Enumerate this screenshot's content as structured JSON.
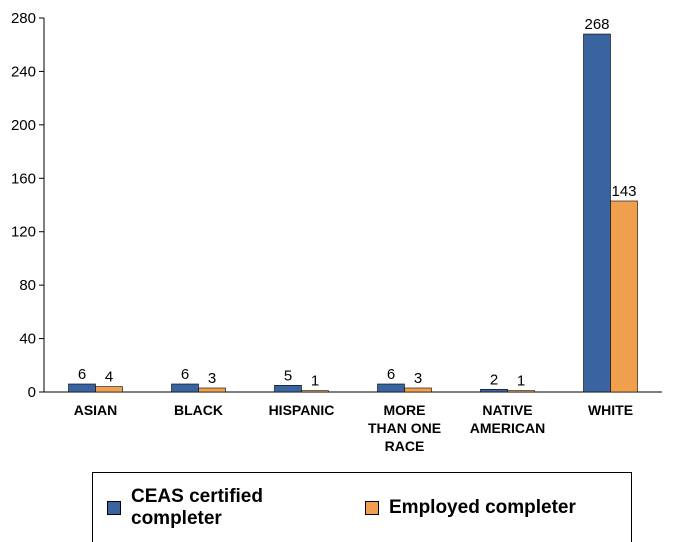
{
  "chart_data": {
    "type": "bar",
    "categories": [
      "ASIAN",
      "BLACK",
      "HISPANIC",
      "MORE THAN ONE RACE",
      "NATIVE AMERICAN",
      "WHITE"
    ],
    "category_lines": [
      [
        "ASIAN"
      ],
      [
        "BLACK"
      ],
      [
        "HISPANIC"
      ],
      [
        "MORE",
        "THAN ONE",
        "RACE"
      ],
      [
        "NATIVE",
        "AMERICAN"
      ],
      [
        "WHITE"
      ]
    ],
    "series": [
      {
        "name": "CEAS certified completer",
        "values": [
          6,
          6,
          5,
          6,
          2,
          268
        ],
        "color": "#3a64a0"
      },
      {
        "name": "Employed completer",
        "values": [
          4,
          3,
          1,
          3,
          1,
          143
        ],
        "color": "#f0a04c"
      }
    ],
    "ylim": [
      0,
      280
    ],
    "yticks": [
      0,
      40,
      80,
      120,
      160,
      200,
      240,
      280
    ],
    "grid": false,
    "legend_position": "bottom"
  }
}
